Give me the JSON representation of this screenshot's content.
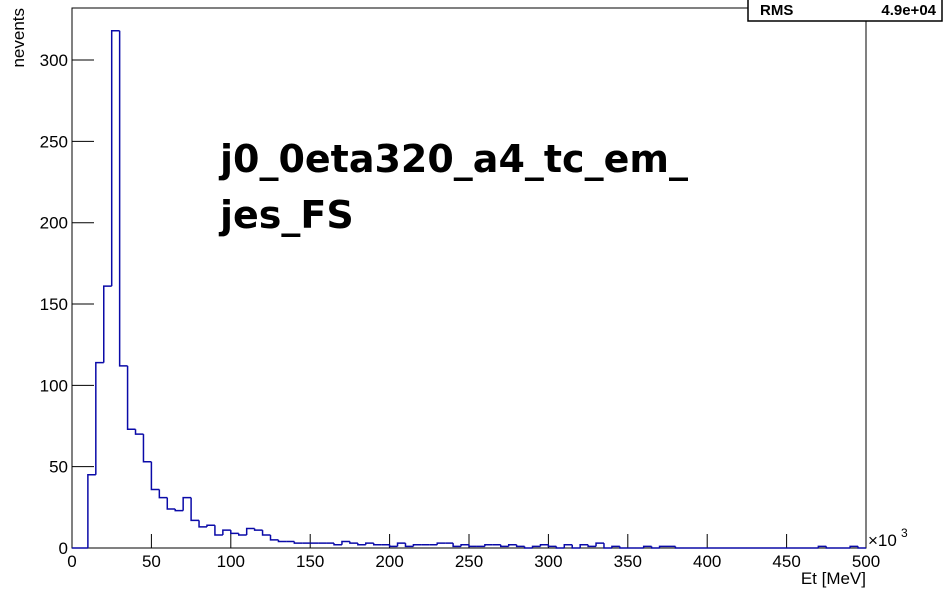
{
  "chart_data": {
    "type": "histogram",
    "annotation": [
      "j0_0eta320_a4_tc_em_",
      "jes_FS"
    ],
    "x_label": "Et [MeV]",
    "y_label": "nevents",
    "x_multiplier": {
      "base": "×10",
      "exponent": "3"
    },
    "stats": [
      {
        "name": "RMS",
        "label": "4.9e+04"
      }
    ],
    "color": "#0a0aa8",
    "bins": [
      0,
      5,
      10,
      15,
      20,
      25,
      30,
      35,
      40,
      45,
      50,
      55,
      60,
      65,
      70,
      75,
      80,
      85,
      90,
      95,
      100,
      105,
      110,
      115,
      120,
      125,
      130,
      135,
      140,
      145,
      150,
      155,
      160,
      165,
      170,
      175,
      180,
      185,
      190,
      195,
      200,
      205,
      210,
      215,
      220,
      225,
      230,
      235,
      240,
      245,
      250,
      255,
      260,
      265,
      270,
      275,
      280,
      285,
      290,
      295,
      300,
      305,
      310,
      315,
      320,
      325,
      330,
      335,
      340,
      345,
      350,
      355,
      360,
      365,
      370,
      375,
      380,
      385,
      390,
      395,
      400,
      405,
      410,
      415,
      420,
      425,
      430,
      435,
      440,
      445,
      450,
      455,
      460,
      465,
      470,
      475,
      480,
      485,
      490,
      495,
      500
    ],
    "counts": [
      0,
      0,
      45,
      114,
      161,
      318,
      112,
      73,
      70,
      53,
      36,
      31,
      24,
      23,
      31,
      17,
      13,
      14,
      8,
      11,
      9,
      8,
      12,
      11,
      8,
      5,
      4,
      4,
      3,
      3,
      3,
      3,
      3,
      2,
      4,
      3,
      2,
      3,
      2,
      2,
      1,
      3,
      1,
      2,
      2,
      2,
      3,
      3,
      1,
      2,
      1,
      1,
      2,
      2,
      1,
      2,
      1,
      0,
      1,
      2,
      1,
      0,
      2,
      0,
      2,
      1,
      3,
      0,
      1,
      0,
      0,
      0,
      1,
      0,
      1,
      1,
      0,
      0,
      0,
      0,
      0,
      0,
      0,
      0,
      0,
      0,
      0,
      0,
      0,
      0,
      0,
      0,
      0,
      0,
      1,
      0,
      0,
      0,
      1,
      0
    ],
    "xlim": [
      0,
      500
    ],
    "ylim": [
      0,
      332
    ],
    "xticks": [
      0,
      50,
      100,
      150,
      200,
      250,
      300,
      350,
      400,
      450,
      500
    ],
    "yticks": [
      0,
      50,
      100,
      150,
      200,
      250,
      300
    ]
  }
}
